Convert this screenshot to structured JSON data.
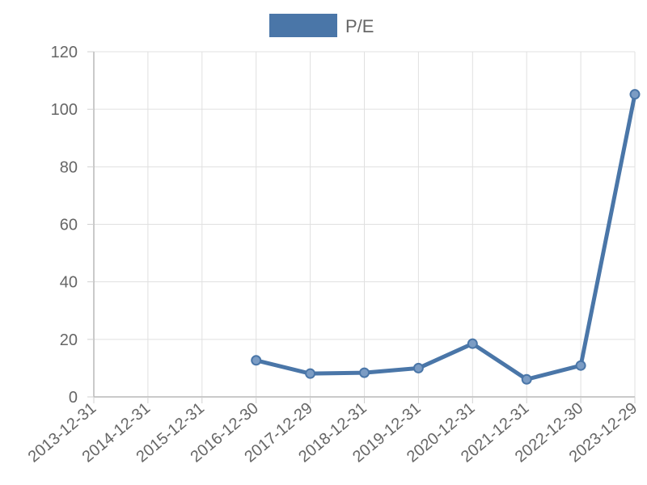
{
  "chart_data": {
    "type": "line",
    "x": [
      "2013-12-31",
      "2014-12-31",
      "2015-12-31",
      "2016-12-30",
      "2017-12-29",
      "2018-12-31",
      "2019-12-31",
      "2020-12-31",
      "2021-12-31",
      "2022-12-30",
      "2023-12-29"
    ],
    "series": [
      {
        "name": "P/E",
        "color": "#4a76a8",
        "values": [
          null,
          null,
          null,
          12.7,
          8.1,
          8.4,
          10.0,
          18.5,
          6.1,
          10.9,
          105.2
        ]
      }
    ],
    "ylim": [
      0,
      120
    ],
    "yticks": [
      "0",
      "20",
      "40",
      "60",
      "80",
      "100",
      "120"
    ],
    "grid": true,
    "legend_position": "top-center"
  }
}
